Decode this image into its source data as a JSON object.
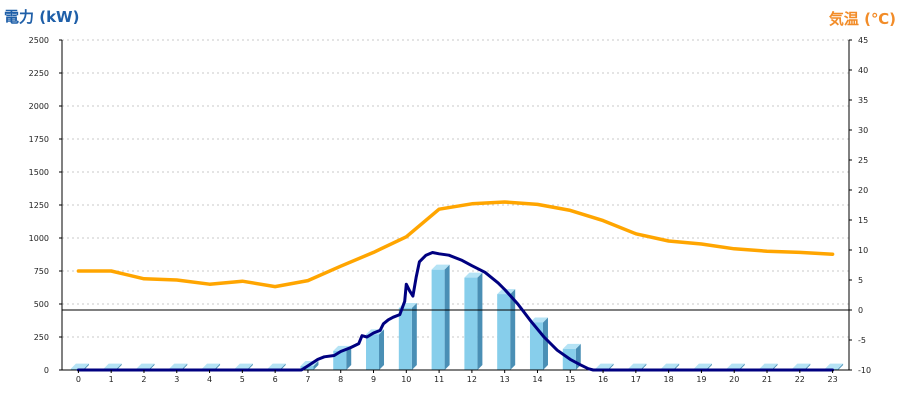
{
  "chart_data": {
    "type": "bar",
    "title_left": "電力 (kW)",
    "title_right": "気温 (℃)",
    "colors": {
      "left_title": "#1f5fa8",
      "right_title": "#f28c28",
      "bar_front": "#87ceeb",
      "bar_side": "#4a8fb5",
      "bar_top": "#b5e3f5",
      "power_line": "#000080",
      "temp_line": "#ffa500",
      "grid": "#c8c8c8"
    },
    "categories": [
      "0",
      "1",
      "2",
      "3",
      "4",
      "5",
      "6",
      "7",
      "8",
      "9",
      "10",
      "11",
      "12",
      "13",
      "14",
      "15",
      "16",
      "17",
      "18",
      "19",
      "20",
      "21",
      "22",
      "23"
    ],
    "y_left": {
      "min": 0,
      "max": 2500,
      "ticks": [
        "0",
        "250",
        "500",
        "750",
        "1000",
        "1250",
        "1500",
        "1750",
        "2000",
        "2250",
        "2500"
      ]
    },
    "y_right": {
      "min": -10,
      "max": 45,
      "ticks": [
        "-10",
        "-5",
        "0",
        "5",
        "10",
        "15",
        "20",
        "25",
        "30",
        "35",
        "40",
        "45"
      ]
    },
    "grid": true,
    "series": [
      {
        "kind": "bar",
        "axis": "left",
        "values": [
          10,
          10,
          10,
          10,
          10,
          10,
          10,
          30,
          145,
          270,
          470,
          760,
          700,
          575,
          360,
          160,
          10,
          10,
          10,
          10,
          10,
          10,
          10,
          10
        ]
      },
      {
        "kind": "line",
        "axis": "left",
        "points": [
          [
            0,
            0
          ],
          [
            1,
            0
          ],
          [
            2,
            0
          ],
          [
            3,
            0
          ],
          [
            4,
            0
          ],
          [
            5,
            0
          ],
          [
            6,
            0
          ],
          [
            6.8,
            0
          ],
          [
            7.05,
            40
          ],
          [
            7.3,
            80
          ],
          [
            7.5,
            100
          ],
          [
            7.8,
            110
          ],
          [
            8.0,
            140
          ],
          [
            8.3,
            170
          ],
          [
            8.55,
            200
          ],
          [
            8.65,
            260
          ],
          [
            8.8,
            250
          ],
          [
            9.0,
            280
          ],
          [
            9.2,
            300
          ],
          [
            9.3,
            350
          ],
          [
            9.45,
            380
          ],
          [
            9.6,
            400
          ],
          [
            9.8,
            420
          ],
          [
            9.95,
            520
          ],
          [
            10.0,
            650
          ],
          [
            10.1,
            600
          ],
          [
            10.2,
            560
          ],
          [
            10.3,
            700
          ],
          [
            10.4,
            820
          ],
          [
            10.6,
            870
          ],
          [
            10.8,
            890
          ],
          [
            11.0,
            880
          ],
          [
            11.3,
            870
          ],
          [
            11.7,
            830
          ],
          [
            12.0,
            790
          ],
          [
            12.4,
            740
          ],
          [
            12.8,
            660
          ],
          [
            13.0,
            610
          ],
          [
            13.4,
            500
          ],
          [
            13.8,
            370
          ],
          [
            14.2,
            250
          ],
          [
            14.6,
            150
          ],
          [
            15.0,
            80
          ],
          [
            15.3,
            40
          ],
          [
            15.55,
            10
          ],
          [
            15.7,
            0
          ],
          [
            16,
            0
          ],
          [
            17,
            0
          ],
          [
            18,
            0
          ],
          [
            19,
            0
          ],
          [
            20,
            0
          ],
          [
            21,
            0
          ],
          [
            22,
            0
          ],
          [
            23,
            0
          ]
        ]
      },
      {
        "kind": "line",
        "axis": "right",
        "points": [
          [
            0,
            6.5
          ],
          [
            1,
            6.5
          ],
          [
            2,
            5.2
          ],
          [
            3,
            5.0
          ],
          [
            4,
            4.3
          ],
          [
            5,
            4.8
          ],
          [
            6,
            3.9
          ],
          [
            7,
            4.9
          ],
          [
            8,
            7.3
          ],
          [
            9,
            9.6
          ],
          [
            10,
            12.2
          ],
          [
            11,
            16.8
          ],
          [
            12,
            17.7
          ],
          [
            13,
            18.0
          ],
          [
            14,
            17.6
          ],
          [
            15,
            16.6
          ],
          [
            16,
            14.9
          ],
          [
            17,
            12.7
          ],
          [
            18,
            11.5
          ],
          [
            19,
            11.0
          ],
          [
            20,
            10.2
          ],
          [
            21,
            9.8
          ],
          [
            22,
            9.6
          ],
          [
            23,
            9.3
          ]
        ]
      }
    ]
  }
}
